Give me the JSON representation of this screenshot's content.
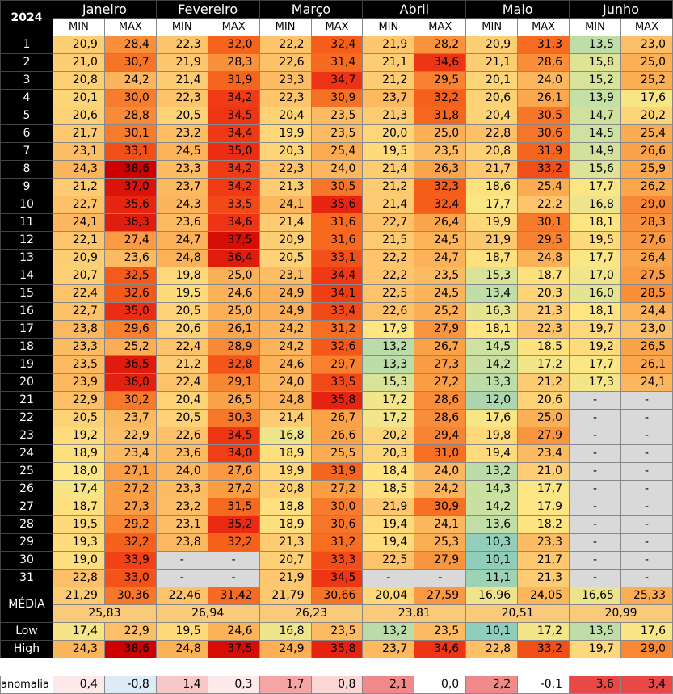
{
  "year": "2024",
  "months": [
    "Janeiro",
    "Fevereiro",
    "Março",
    "Abril",
    "Maio",
    "Junho"
  ],
  "min_label": "MIN",
  "max_label": "MAX",
  "rows": [
    {
      "day": "1",
      "v": [
        "20,9",
        "28,4",
        "22,3",
        "32,0",
        "22,2",
        "32,4",
        "21,9",
        "28,2",
        "20,9",
        "31,3",
        "13,5",
        "23,0"
      ]
    },
    {
      "day": "2",
      "v": [
        "21,0",
        "30,7",
        "21,9",
        "28,3",
        "22,6",
        "31,4",
        "21,1",
        "34,6",
        "21,1",
        "28,6",
        "15,8",
        "25,0"
      ]
    },
    {
      "day": "3",
      "v": [
        "20,8",
        "24,2",
        "21,4",
        "31,9",
        "23,3",
        "34,7",
        "21,2",
        "29,5",
        "20,1",
        "24,0",
        "15,2",
        "25,2"
      ]
    },
    {
      "day": "4",
      "v": [
        "20,1",
        "30,0",
        "22,3",
        "34,2",
        "22,3",
        "30,9",
        "23,7",
        "32,2",
        "20,6",
        "26,1",
        "13,9",
        "17,6"
      ]
    },
    {
      "day": "5",
      "v": [
        "20,6",
        "28,8",
        "20,5",
        "34,5",
        "20,4",
        "23,5",
        "21,3",
        "31,8",
        "20,4",
        "30,5",
        "14,7",
        "20,2"
      ]
    },
    {
      "day": "6",
      "v": [
        "21,7",
        "30,1",
        "23,2",
        "34,4",
        "19,9",
        "23,5",
        "20,0",
        "25,0",
        "22,8",
        "30,6",
        "14,5",
        "25,4"
      ]
    },
    {
      "day": "7",
      "v": [
        "23,1",
        "33,1",
        "24,5",
        "35,0",
        "20,3",
        "25,4",
        "19,5",
        "23,5",
        "20,8",
        "31,9",
        "14,9",
        "26,6"
      ]
    },
    {
      "day": "8",
      "v": [
        "24,3",
        "38,6",
        "23,3",
        "34,2",
        "22,3",
        "24,0",
        "21,4",
        "26,3",
        "21,7",
        "33,2",
        "15,6",
        "25,9"
      ]
    },
    {
      "day": "9",
      "v": [
        "21,2",
        "37,0",
        "23,7",
        "34,2",
        "21,3",
        "30,5",
        "21,2",
        "32,3",
        "18,6",
        "25,4",
        "17,7",
        "26,2"
      ]
    },
    {
      "day": "10",
      "v": [
        "22,7",
        "35,6",
        "24,3",
        "33,5",
        "24,1",
        "35,6",
        "21,4",
        "32,4",
        "17,7",
        "22,2",
        "16,8",
        "29,0"
      ]
    },
    {
      "day": "11",
      "v": [
        "24,1",
        "36,3",
        "23,6",
        "34,6",
        "21,4",
        "31,6",
        "22,7",
        "26,4",
        "19,9",
        "30,1",
        "18,1",
        "28,3"
      ]
    },
    {
      "day": "12",
      "v": [
        "22,1",
        "27,4",
        "24,7",
        "37,5",
        "20,9",
        "31,6",
        "21,5",
        "24,5",
        "21,9",
        "29,5",
        "19,5",
        "27,6"
      ]
    },
    {
      "day": "13",
      "v": [
        "20,9",
        "23,6",
        "24,8",
        "36,4",
        "20,5",
        "33,1",
        "22,2",
        "24,7",
        "18,7",
        "24,8",
        "17,7",
        "26,4"
      ]
    },
    {
      "day": "14",
      "v": [
        "20,7",
        "32,5",
        "19,8",
        "25,0",
        "23,1",
        "34,4",
        "22,2",
        "23,5",
        "15,3",
        "18,7",
        "17,0",
        "27,5"
      ]
    },
    {
      "day": "15",
      "v": [
        "22,4",
        "32,6",
        "19,5",
        "24,6",
        "24,9",
        "34,1",
        "22,5",
        "24,5",
        "13,4",
        "20,3",
        "16,0",
        "28,5"
      ]
    },
    {
      "day": "16",
      "v": [
        "22,7",
        "35,0",
        "20,5",
        "25,0",
        "24,9",
        "33,4",
        "22,6",
        "25,2",
        "16,3",
        "21,3",
        "18,1",
        "24,4"
      ]
    },
    {
      "day": "17",
      "v": [
        "23,8",
        "29,6",
        "20,6",
        "26,1",
        "24,2",
        "31,2",
        "17,9",
        "27,9",
        "18,1",
        "22,3",
        "19,7",
        "23,0"
      ]
    },
    {
      "day": "18",
      "v": [
        "23,3",
        "25,2",
        "22,4",
        "28,9",
        "24,2",
        "32,6",
        "13,2",
        "26,7",
        "14,5",
        "18,5",
        "19,2",
        "26,5"
      ]
    },
    {
      "day": "19",
      "v": [
        "23,5",
        "36,5",
        "21,2",
        "32,8",
        "24,6",
        "29,7",
        "13,3",
        "27,3",
        "14,2",
        "17,2",
        "17,7",
        "26,1"
      ]
    },
    {
      "day": "20",
      "v": [
        "23,9",
        "36,0",
        "22,4",
        "29,1",
        "24,0",
        "33,5",
        "15,3",
        "27,2",
        "13,3",
        "21,2",
        "17,3",
        "24,1"
      ]
    },
    {
      "day": "21",
      "v": [
        "22,9",
        "30,2",
        "20,4",
        "26,5",
        "24,8",
        "35,8",
        "17,2",
        "28,6",
        "12,0",
        "20,6",
        "-",
        "-"
      ]
    },
    {
      "day": "22",
      "v": [
        "20,5",
        "23,7",
        "20,5",
        "30,3",
        "21,4",
        "26,7",
        "17,2",
        "28,6",
        "17,6",
        "25,0",
        "-",
        "-"
      ]
    },
    {
      "day": "23",
      "v": [
        "19,2",
        "22,9",
        "22,6",
        "34,5",
        "16,8",
        "26,6",
        "20,2",
        "29,4",
        "19,8",
        "27,9",
        "-",
        "-"
      ]
    },
    {
      "day": "24",
      "v": [
        "18,9",
        "23,4",
        "23,6",
        "34,0",
        "18,9",
        "25,5",
        "20,3",
        "31,0",
        "19,4",
        "23,4",
        "-",
        "-"
      ]
    },
    {
      "day": "25",
      "v": [
        "18,0",
        "27,1",
        "24,0",
        "27,6",
        "19,9",
        "31,9",
        "18,4",
        "24,0",
        "13,2",
        "21,0",
        "-",
        "-"
      ]
    },
    {
      "day": "26",
      "v": [
        "17,4",
        "27,2",
        "23,3",
        "27,2",
        "20,8",
        "27,2",
        "18,5",
        "24,2",
        "14,3",
        "17,7",
        "-",
        "-"
      ]
    },
    {
      "day": "27",
      "v": [
        "18,7",
        "27,3",
        "23,2",
        "31,5",
        "18,8",
        "30,0",
        "21,9",
        "30,9",
        "14,2",
        "17,9",
        "-",
        "-"
      ]
    },
    {
      "day": "28",
      "v": [
        "19,5",
        "29,2",
        "23,1",
        "35,2",
        "18,9",
        "30,6",
        "19,4",
        "24,1",
        "13,6",
        "18,2",
        "-",
        "-"
      ]
    },
    {
      "day": "29",
      "v": [
        "19,3",
        "32,2",
        "23,8",
        "32,2",
        "21,3",
        "31,2",
        "19,4",
        "25,3",
        "10,3",
        "23,3",
        "-",
        "-"
      ]
    },
    {
      "day": "30",
      "v": [
        "19,0",
        "33,9",
        "-",
        "-",
        "20,7",
        "33,3",
        "22,5",
        "27,9",
        "10,1",
        "21,7",
        "-",
        "-"
      ]
    },
    {
      "day": "31",
      "v": [
        "22,8",
        "33,0",
        "-",
        "-",
        "21,9",
        "34,5",
        "-",
        "-",
        "11,1",
        "21,3",
        "-",
        "-"
      ]
    }
  ],
  "media_label": "MÉDIA",
  "media_values": [
    "21,29",
    "30,36",
    "22,46",
    "31,42",
    "21,79",
    "30,66",
    "20,04",
    "27,59",
    "16,96",
    "24,05",
    "16,65",
    "25,33"
  ],
  "media_monthly": [
    "25,83",
    "26,94",
    "26,23",
    "23,81",
    "20,51",
    "20,99"
  ],
  "low_label": "Low",
  "low_values": [
    "17,4",
    "22,9",
    "19,5",
    "24,6",
    "16,8",
    "23,5",
    "13,2",
    "23,5",
    "10,1",
    "17,2",
    "13,5",
    "17,6"
  ],
  "high_label": "High",
  "high_values": [
    "24,3",
    "38,6",
    "24,8",
    "37,5",
    "24,9",
    "35,8",
    "23,7",
    "34,6",
    "22,8",
    "33,2",
    "19,7",
    "29,0"
  ],
  "anomalia_label": "anomalia",
  "anomalia_values": [
    "0,4",
    "-0,8",
    "1,4",
    "0,3",
    "1,7",
    "0,8",
    "2,1",
    "0,0",
    "2,2",
    "-0,1",
    "3,6",
    "3,4"
  ],
  "anomalia_colors": [
    "#fde9e9",
    "#ddebf7",
    "#f8c7c7",
    "#fde9e9",
    "#f4a6a6",
    "#fcd5d5",
    "#f08a8a",
    "#ffffff",
    "#f08a8a",
    "#ffffff",
    "#e84848",
    "#e84848"
  ]
}
